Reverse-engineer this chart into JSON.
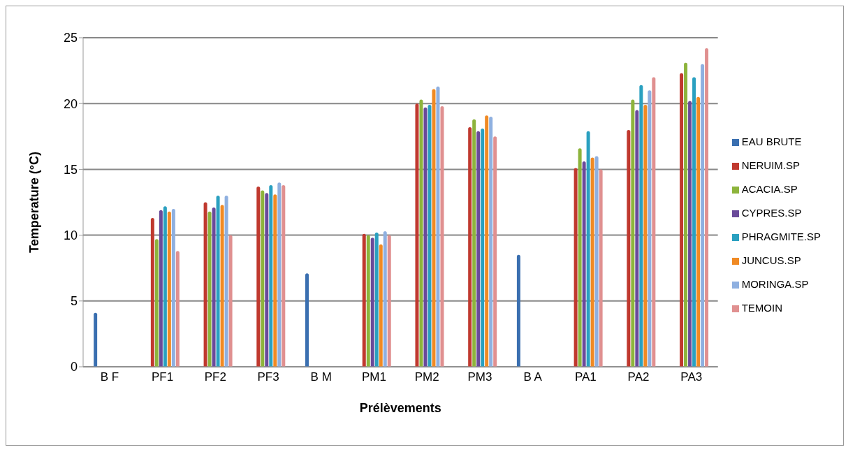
{
  "chart_data": {
    "type": "bar",
    "xlabel": "Prélèvements",
    "ylabel": "Temperature (°C)",
    "categories": [
      "B F",
      "PF1",
      "PF2",
      "PF3",
      "B M",
      "PM1",
      "PM2",
      "PM3",
      "B A",
      "PA1",
      "PA2",
      "PA3"
    ],
    "series": [
      {
        "name": "EAU BRUTE",
        "color": "#3a6fb0",
        "values": [
          4.1,
          null,
          null,
          null,
          7.1,
          null,
          null,
          null,
          8.5,
          null,
          null,
          null
        ]
      },
      {
        "name": "NERUIM.SP",
        "color": "#c0392f",
        "values": [
          null,
          11.3,
          12.5,
          13.7,
          null,
          10.1,
          20.0,
          18.2,
          null,
          15.1,
          18.0,
          22.3
        ]
      },
      {
        "name": "ACACIA.SP",
        "color": "#8db43c",
        "values": [
          null,
          9.7,
          11.8,
          13.4,
          null,
          10.0,
          20.3,
          18.8,
          null,
          16.6,
          20.3,
          23.1
        ]
      },
      {
        "name": "CYPRES.SP",
        "color": "#6a4a9a",
        "values": [
          null,
          11.9,
          12.1,
          13.2,
          null,
          9.8,
          19.7,
          17.9,
          null,
          15.6,
          19.5,
          20.2
        ]
      },
      {
        "name": "PHRAGMITE.SP",
        "color": "#2aa0c0",
        "values": [
          null,
          12.2,
          13.0,
          13.8,
          null,
          10.2,
          19.9,
          18.1,
          null,
          17.9,
          21.4,
          22.0
        ]
      },
      {
        "name": "JUNCUS.SP",
        "color": "#f08a24",
        "values": [
          null,
          11.8,
          12.3,
          13.1,
          null,
          9.3,
          21.1,
          19.1,
          null,
          15.9,
          19.9,
          20.5
        ]
      },
      {
        "name": "MORINGA.SP",
        "color": "#8fb0e0",
        "values": [
          null,
          12.0,
          13.0,
          14.0,
          null,
          10.3,
          21.3,
          19.0,
          null,
          16.0,
          21.0,
          23.0
        ]
      },
      {
        "name": "TEMOIN",
        "color": "#e09090",
        "values": [
          null,
          8.8,
          10.0,
          13.8,
          null,
          10.0,
          19.8,
          17.5,
          null,
          15.0,
          22.0,
          24.2
        ]
      }
    ],
    "ylim": [
      0,
      25
    ],
    "yticks": [
      0,
      5,
      10,
      15,
      20,
      25
    ],
    "grid": "y",
    "legend": "right"
  }
}
